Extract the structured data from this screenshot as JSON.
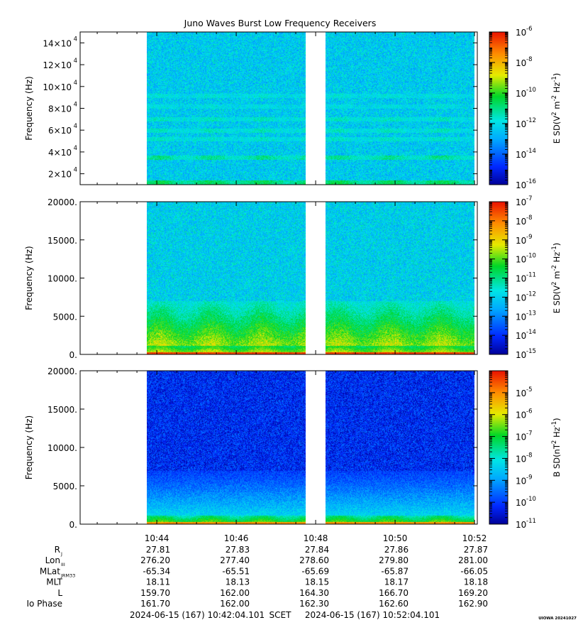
{
  "title": "Juno Waves Burst Low Frequency Receivers",
  "chart_data": [
    {
      "type": "heatmap",
      "panel": "hfr_electric",
      "xlabel": "",
      "ylabel": "Frequency (Hz)",
      "ylim": [
        10000,
        150000
      ],
      "yticks": [
        {
          "v": 20000,
          "m": "2",
          "e": "4"
        },
        {
          "v": 40000,
          "m": "4",
          "e": "4"
        },
        {
          "v": 60000,
          "m": "6",
          "e": "4"
        },
        {
          "v": 80000,
          "m": "8",
          "e": "4"
        },
        {
          "v": 100000,
          "m": "10",
          "e": "4"
        },
        {
          "v": 120000,
          "m": "12",
          "e": "4"
        },
        {
          "v": 140000,
          "m": "14",
          "e": "4"
        }
      ],
      "colorbar": {
        "label_parts": [
          "E SD(V",
          "2",
          " m",
          "-2",
          " Hz",
          "-1",
          ")"
        ],
        "range_exp": [
          -16,
          -6
        ],
        "ticks": [
          "-16",
          "-14",
          "-12",
          "-10",
          "-8",
          "-6"
        ]
      },
      "bands": [
        {
          "f": 12000,
          "level": 0.55
        },
        {
          "f": 35000,
          "level": 0.5
        },
        {
          "f": 52000,
          "level": 0.44
        },
        {
          "f": 60000,
          "level": 0.45
        },
        {
          "f": 70000,
          "level": 0.45
        },
        {
          "f": 82000,
          "level": 0.4
        },
        {
          "f": 92000,
          "level": 0.42
        }
      ],
      "background_level": 0.37
    },
    {
      "type": "heatmap",
      "panel": "lfr_electric",
      "xlabel": "",
      "ylabel": "Frequency (Hz)",
      "ylim": [
        0,
        20000
      ],
      "yticks": [
        {
          "v": 0,
          "t": "0."
        },
        {
          "v": 5000,
          "t": "5000."
        },
        {
          "v": 10000,
          "t": "10000."
        },
        {
          "v": 15000,
          "t": "15000."
        },
        {
          "v": 20000,
          "t": "20000."
        }
      ],
      "colorbar": {
        "label_parts": [
          "E SD(V",
          "2",
          " m",
          "-2",
          " Hz",
          "-1",
          ")"
        ],
        "range_exp": [
          -15,
          -7
        ],
        "ticks": [
          "-15",
          "-14",
          "-13",
          "-12",
          "-11",
          "-10",
          "-9",
          "-8",
          "-7"
        ]
      },
      "background_level": 0.38,
      "low_freq_level": 0.95
    },
    {
      "type": "heatmap",
      "panel": "lfr_magnetic",
      "xlabel": "",
      "ylabel": "Frequency (Hz)",
      "ylim": [
        0,
        20000
      ],
      "yticks": [
        {
          "v": 0,
          "t": "0."
        },
        {
          "v": 5000,
          "t": "5000."
        },
        {
          "v": 10000,
          "t": "10000."
        },
        {
          "v": 15000,
          "t": "15000."
        },
        {
          "v": 20000,
          "t": "20000."
        }
      ],
      "colorbar": {
        "label_parts": [
          "B SD(nT",
          "2",
          " Hz",
          "-1",
          ")"
        ],
        "range_exp": [
          -11,
          -4
        ],
        "ticks": [
          "-11",
          "-10",
          "-9",
          "-8",
          "-7",
          "-6",
          "-5"
        ]
      },
      "background_level": 0.12,
      "low_freq_level": 0.85
    }
  ],
  "time_axis": {
    "start_min": 642.07,
    "end_min": 652.07,
    "data_segments": [
      [
        643.75,
        647.75
      ],
      [
        648.25,
        652.0
      ]
    ],
    "labels": [
      "10:44",
      "10:46",
      "10:48",
      "10:50",
      "10:52"
    ],
    "label_min": [
      644,
      646,
      648,
      650,
      652
    ]
  },
  "ephemeris": {
    "rows": [
      {
        "label": "R",
        "sub": "J",
        "values": [
          "27.81",
          "27.83",
          "27.84",
          "27.86",
          "27.87"
        ]
      },
      {
        "label": "Lon",
        "sub": "III",
        "values": [
          "276.20",
          "277.40",
          "278.60",
          "279.80",
          "281.00"
        ]
      },
      {
        "label": "MLat",
        "sub": "JRM33",
        "values": [
          "-65.34",
          "-65.51",
          "-65.69",
          "-65.87",
          "-66.05"
        ]
      },
      {
        "label": "MLT",
        "sub": "",
        "values": [
          "18.11",
          "18.13",
          "18.15",
          "18.17",
          "18.18"
        ]
      },
      {
        "label": "L",
        "sub": "",
        "values": [
          "159.70",
          "162.00",
          "164.30",
          "166.70",
          "169.20"
        ]
      },
      {
        "label": "Io Phase",
        "sub": "",
        "values": [
          "161.70",
          "162.00",
          "162.30",
          "162.60",
          "162.90"
        ]
      }
    ]
  },
  "footer": {
    "start": "2024-06-15 (167) 10:42:04.101",
    "scet": "SCET",
    "end": "2024-06-15 (167) 10:52:04.101",
    "stamp": "UIOWA 20241027"
  }
}
